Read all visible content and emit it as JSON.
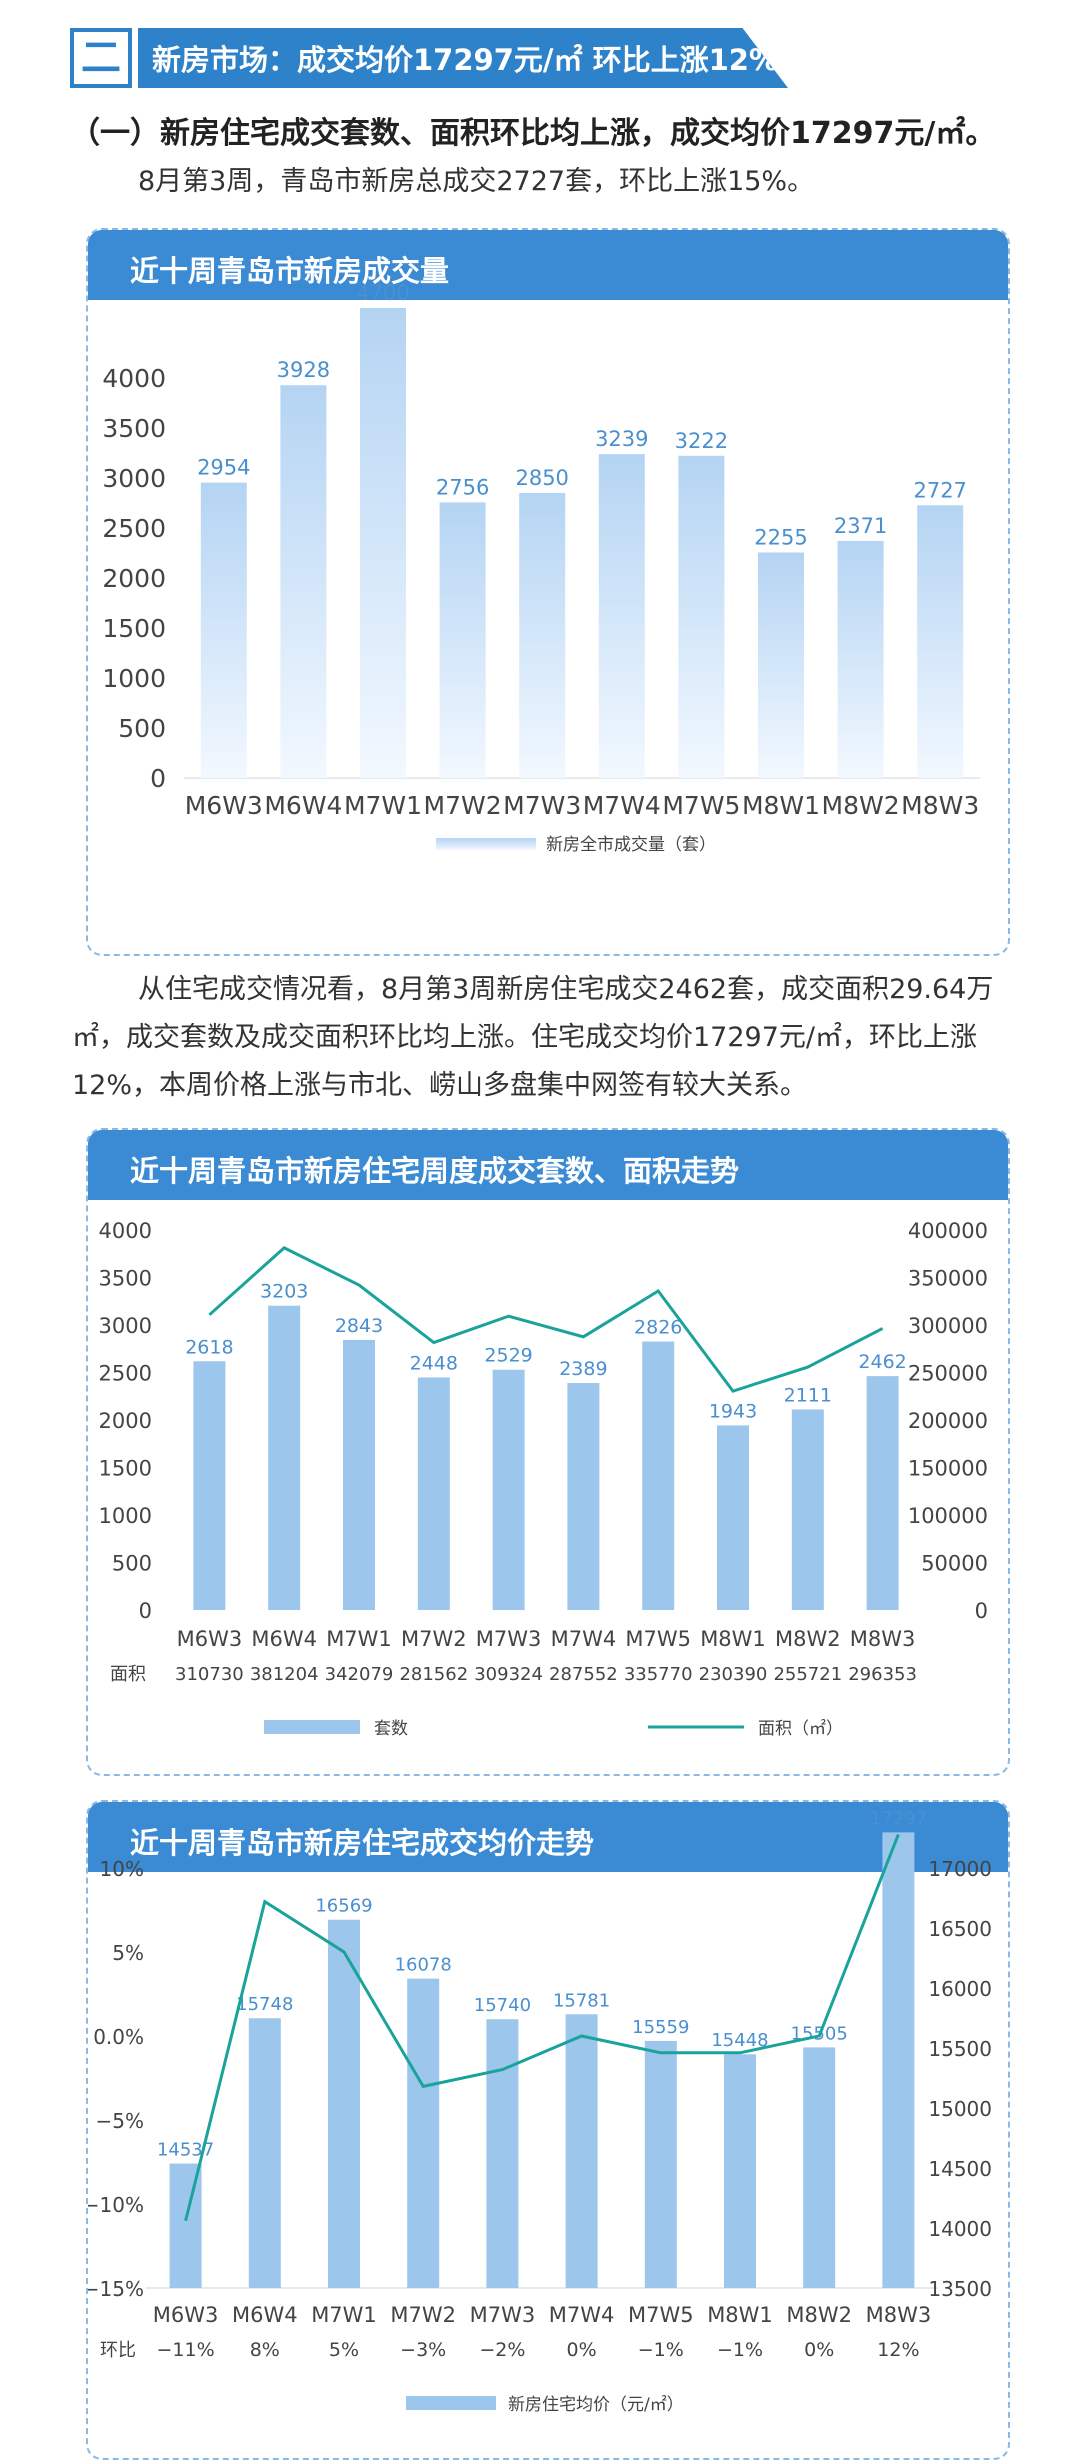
{
  "section": {
    "number": "二",
    "title": "新房市场：成交均价17297元/㎡  环比上涨12%",
    "subheading": "（一）新房住宅成交套数、面积环比均上涨，成交均价17297元/㎡。",
    "paragraph1": "8月第3周，青岛市新房总成交2727套，环比上涨15%。",
    "paragraph2": "从住宅成交情况看，8月第3周新房住宅成交2462套，成交面积29.64万㎡，成交套数及成交面积环比均上涨。住宅成交均价17297元/㎡，环比上涨12%，本周价格上涨与市北、崂山多盘集中网签有较大关系。"
  },
  "colors": {
    "primary": "#3a8ad4",
    "bar": "#9cc6ec",
    "line": "#1aa39a",
    "label": "#4a8fd0"
  },
  "chart_data": [
    {
      "type": "bar",
      "title": "近十周青岛市新房成交量",
      "categories": [
        "M6W3",
        "M6W4",
        "M7W1",
        "M7W2",
        "M7W3",
        "M7W4",
        "M7W5",
        "M8W1",
        "M8W2",
        "M8W3"
      ],
      "values": [
        2954,
        3928,
        4700,
        2756,
        2850,
        3239,
        3222,
        2255,
        2371,
        2727
      ],
      "series_name": "新房全市成交量（套）",
      "ylim": [
        0,
        4500
      ],
      "yticks": [
        0,
        500,
        1000,
        1500,
        2000,
        2500,
        3000,
        3500,
        4000
      ],
      "grid": false,
      "legend": "bottom"
    },
    {
      "type": "bar+line",
      "title": "近十周青岛市新房住宅周度成交套数、面积走势",
      "categories": [
        "M6W3",
        "M6W4",
        "M7W1",
        "M7W2",
        "M7W3",
        "M7W4",
        "M7W5",
        "M8W1",
        "M8W2",
        "M8W3"
      ],
      "bar_values": [
        2618,
        3203,
        2843,
        2448,
        2529,
        2389,
        2826,
        1943,
        2111,
        2462
      ],
      "line_values": [
        310730,
        381204,
        342079,
        281562,
        309324,
        287552,
        335770,
        230390,
        255721,
        296353
      ],
      "row_label": "面积",
      "bar_name": "套数",
      "line_name": "面积（㎡）",
      "y_left_lim": [
        0,
        4000
      ],
      "y_left_ticks": [
        0,
        500,
        1000,
        1500,
        2000,
        2500,
        3000,
        3500,
        4000
      ],
      "y_right_lim": [
        0,
        400000
      ],
      "y_right_ticks": [
        0,
        50000,
        100000,
        150000,
        200000,
        250000,
        300000,
        350000,
        400000
      ],
      "grid": false,
      "legend": "bottom"
    },
    {
      "type": "bar+line",
      "title": "近十周青岛市新房住宅成交均价走势",
      "categories": [
        "M6W3",
        "M6W4",
        "M7W1",
        "M7W2",
        "M7W3",
        "M7W4",
        "M7W5",
        "M8W1",
        "M8W2",
        "M8W3"
      ],
      "bar_values": [
        14537,
        15748,
        16569,
        16078,
        15740,
        15781,
        15559,
        15448,
        15505,
        17297
      ],
      "line_values": [
        -11,
        8,
        5,
        -3,
        -2,
        0,
        -1,
        -1,
        0,
        12
      ],
      "row_label": "环比",
      "row_values": [
        "−11%",
        "8%",
        "5%",
        "−3%",
        "−2%",
        "0%",
        "−1%",
        "−1%",
        "0%",
        "12%"
      ],
      "bar_name": "新房住宅均价（元/㎡）",
      "y_left_lim": [
        -15,
        10
      ],
      "y_left_ticks": [
        "−15%",
        "−10%",
        "−5%",
        "0.0%",
        "5%",
        "10%"
      ],
      "y_right_lim": [
        13500,
        17000
      ],
      "y_right_ticks": [
        13500,
        14000,
        14500,
        15000,
        15500,
        16000,
        16500,
        17000
      ],
      "grid": false,
      "legend": "bottom"
    }
  ]
}
